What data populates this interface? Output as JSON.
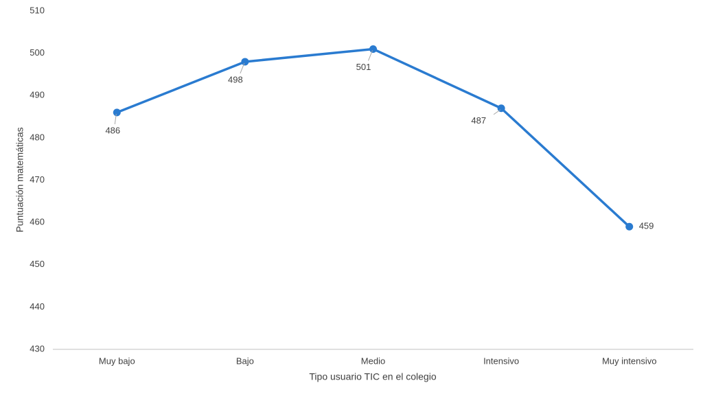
{
  "chart_data": {
    "type": "line",
    "x_label": "Tipo usuario TIC en el colegio",
    "y_label": "Puntuación matemáticas",
    "categories": [
      "Muy bajo",
      "Bajo",
      "Medio",
      "Intensivo",
      "Muy intensivo"
    ],
    "values": [
      486,
      498,
      501,
      487,
      459
    ],
    "color": "#2a7bd0",
    "ylim": [
      430,
      510
    ],
    "yticks": [
      430,
      440,
      450,
      460,
      470,
      480,
      490,
      500,
      510
    ],
    "grid": false
  }
}
